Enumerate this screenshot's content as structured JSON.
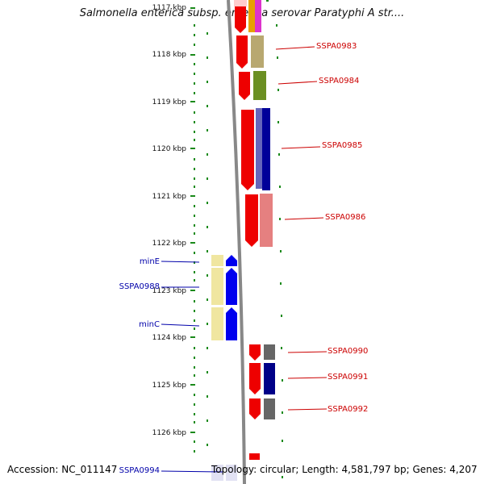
{
  "title": "Salmonella enterica subsp. enterica serovar Paratyphi A str....",
  "footer": {
    "accession": "Accession: NC_011147",
    "topology": "Topology: circular; Length: 4,581,797 bp; Genes: 4,207"
  },
  "ruler_ticks": [
    "1117 kbp",
    "1118 kbp",
    "1119 kbp",
    "1120 kbp",
    "1121 kbp",
    "1122 kbp",
    "1123 kbp",
    "1124 kbp",
    "1125 kbp",
    "1126 kbp"
  ],
  "genes": [
    {
      "name": "SSPA0983",
      "strand": "plus",
      "color": "#cc0000"
    },
    {
      "name": "SSPA0984",
      "strand": "plus",
      "color": "#cc0000"
    },
    {
      "name": "SSPA0985",
      "strand": "plus",
      "color": "#cc0000"
    },
    {
      "name": "SSPA0986",
      "strand": "plus",
      "color": "#cc0000"
    },
    {
      "name": "minE",
      "strand": "minus",
      "color": "#0000cc"
    },
    {
      "name": "SSPA0988",
      "strand": "minus",
      "color": "#0000cc"
    },
    {
      "name": "minC",
      "strand": "minus",
      "color": "#0000cc"
    },
    {
      "name": "SSPA0990",
      "strand": "plus",
      "color": "#cc0000"
    },
    {
      "name": "SSPA0991",
      "strand": "plus",
      "color": "#cc0000"
    },
    {
      "name": "SSPA0992",
      "strand": "plus",
      "color": "#cc0000"
    },
    {
      "name": "SSPA0994",
      "strand": "minus",
      "color": "#0000cc"
    }
  ]
}
